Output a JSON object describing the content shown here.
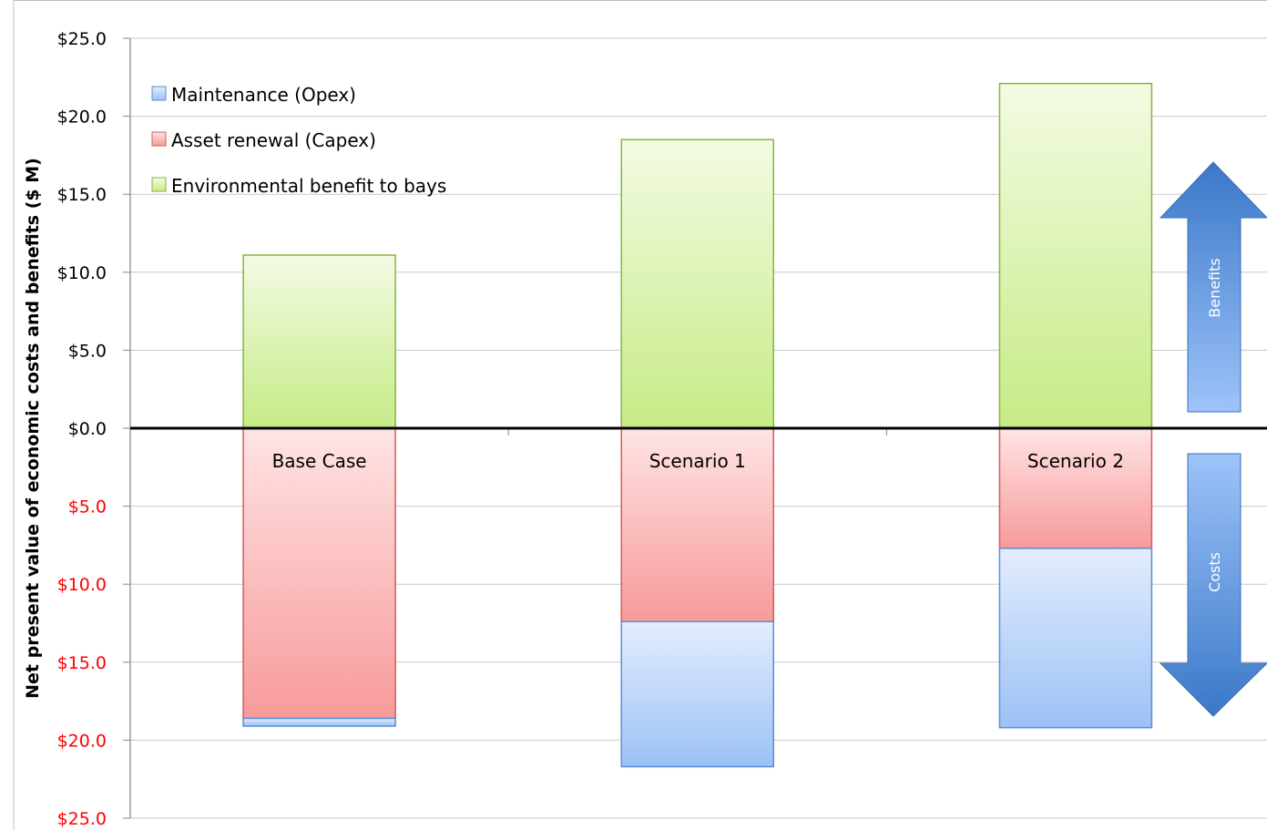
{
  "chart_data": {
    "type": "bar",
    "stacked": true,
    "categories": [
      "Base Case",
      "Scenario 1",
      "Scenario 2"
    ],
    "series": [
      {
        "name": "Maintenance (Opex)",
        "values": [
          -0.5,
          -9.3,
          -11.5
        ],
        "color": "#9dc3f7"
      },
      {
        "name": "Asset renewal (Capex)",
        "values": [
          -18.6,
          -12.4,
          -7.7
        ],
        "color": "#f9a2a2"
      },
      {
        "name": "Environmental benefit to bays",
        "values": [
          11.1,
          18.5,
          22.1
        ],
        "color": "#cfee93"
      }
    ],
    "ylabel": "Net present value of economic costs and benefits ($ M)",
    "ylim": [
      -25,
      25
    ],
    "yticks": [
      25,
      20,
      15,
      10,
      5,
      0,
      -5,
      -10,
      -15,
      -20,
      -25
    ],
    "ytick_labels": [
      "$25.0",
      "$20.0",
      "$15.0",
      "$10.0",
      "$5.0",
      "$0.0",
      "$5.0",
      "$10.0",
      "$15.0",
      "$20.0",
      "$25.0"
    ],
    "negative_tick_color": "#ff0000",
    "grid": true,
    "legend_position": "top-left",
    "annotations": {
      "benefits_arrow": "Benefits",
      "costs_arrow": "Costs"
    }
  }
}
